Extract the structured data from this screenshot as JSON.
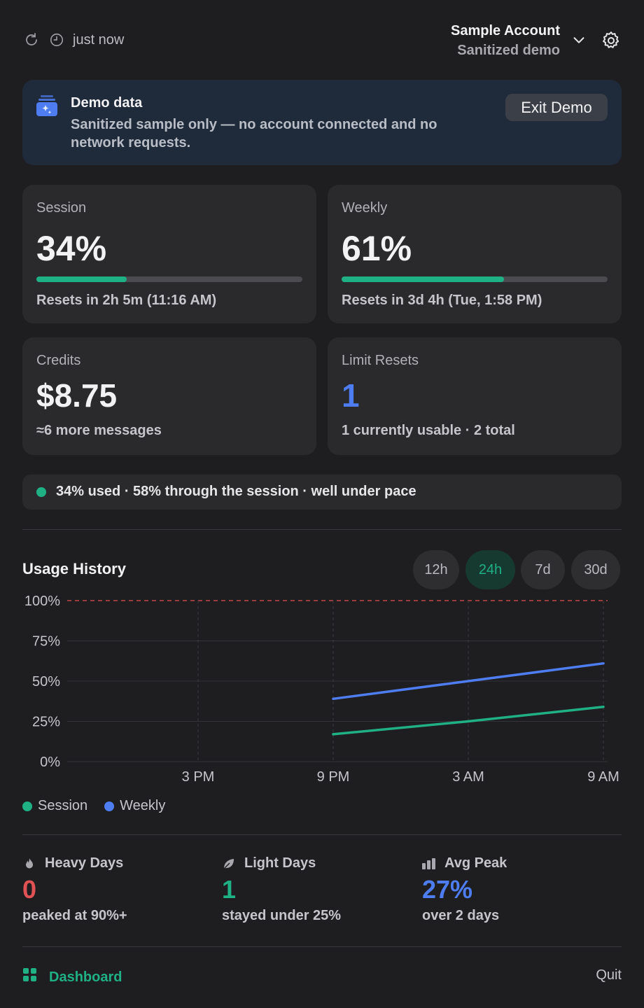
{
  "header": {
    "updated": "just now",
    "account_name": "Sample Account",
    "account_sub": "Sanitized demo"
  },
  "banner": {
    "title": "Demo data",
    "body": "Sanitized sample only — no account connected and no network requests.",
    "exit_label": "Exit Demo"
  },
  "cards": {
    "session": {
      "title": "Session",
      "value": "34%",
      "progress": 0.34,
      "foot": "Resets in 2h 5m (11:16 AM)"
    },
    "weekly": {
      "title": "Weekly",
      "value": "61%",
      "progress": 0.61,
      "foot": "Resets in 3d 4h (Tue, 1:58 PM)"
    },
    "credits": {
      "title": "Credits",
      "value": "$8.75",
      "foot": "≈6 more messages"
    },
    "limit_resets": {
      "title": "Limit Resets",
      "value": "1",
      "foot": "1 currently usable · 2 total"
    }
  },
  "pace": {
    "text": "34% used · 58% through the session · well under pace"
  },
  "usage_history": {
    "title": "Usage History",
    "ranges": [
      "12h",
      "24h",
      "7d",
      "30d"
    ],
    "active_range": "24h"
  },
  "chart_data": {
    "type": "line",
    "title": "Usage History",
    "x": [
      "9 PM",
      "3 AM",
      "9 AM"
    ],
    "x_ticks": [
      "3 PM",
      "9 PM",
      "3 AM",
      "9 AM"
    ],
    "y_ticks": [
      "100%",
      "75%",
      "50%",
      "25%",
      "0%"
    ],
    "ylim": [
      0,
      100
    ],
    "series": [
      {
        "name": "Session",
        "color": "#1fb184",
        "values": [
          17,
          25,
          34
        ]
      },
      {
        "name": "Weekly",
        "color": "#4d7df0",
        "values": [
          39,
          50,
          61
        ]
      }
    ],
    "limit_line": 100,
    "grid": true,
    "legend": "bottom-left"
  },
  "legend": {
    "session": "Session",
    "weekly": "Weekly"
  },
  "stats": {
    "heavy": {
      "label": "Heavy Days",
      "value": "0",
      "sub": "peaked at 90%+",
      "color": "#e05253"
    },
    "light": {
      "label": "Light Days",
      "value": "1",
      "sub": "stayed under 25%",
      "color": "#1fb184"
    },
    "avg": {
      "label": "Avg Peak",
      "value": "27%",
      "sub": "over 2 days",
      "color": "#4d7df0"
    }
  },
  "footer": {
    "dashboard": "Dashboard",
    "quit": "Quit"
  },
  "colors": {
    "accent": "#1fb184",
    "weekly": "#4d7df0",
    "danger": "#e05253"
  }
}
